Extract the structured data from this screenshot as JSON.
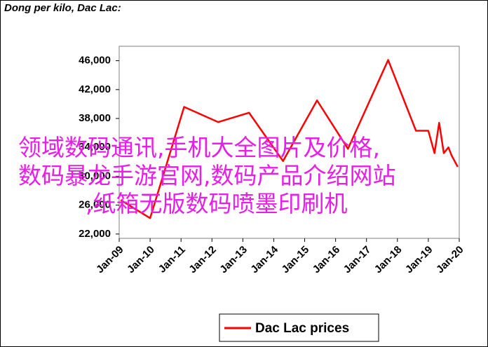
{
  "chart_data": {
    "type": "line",
    "title": "Dong per kilo, Dac Lac:",
    "x": [
      2009.05,
      2010.0,
      2011.1,
      2012.2,
      2013.2,
      2014.3,
      2015.4,
      2016.4,
      2017.7,
      2018.6,
      2019.0,
      2019.2,
      2019.35,
      2019.5,
      2019.65,
      2019.75,
      2019.95
    ],
    "series": [
      {
        "name": "Dac Lac prices",
        "color": "#ff0000",
        "values": [
          26700,
          24200,
          39600,
          37500,
          38800,
          32100,
          40500,
          33800,
          46100,
          36300,
          36300,
          33200,
          37400,
          33200,
          34000,
          32900,
          31300
        ]
      }
    ],
    "xlim": [
      2009,
      2020
    ],
    "xticks": [
      {
        "value": 2009,
        "label": "Jan-09"
      },
      {
        "value": 2010,
        "label": "Jan-10"
      },
      {
        "value": 2011,
        "label": "Jan-11"
      },
      {
        "value": 2012,
        "label": "Jan-12"
      },
      {
        "value": 2013,
        "label": "Jan-13"
      },
      {
        "value": 2014,
        "label": "Jan-14"
      },
      {
        "value": 2015,
        "label": "Jan-15"
      },
      {
        "value": 2016,
        "label": "Jan-16"
      },
      {
        "value": 2017,
        "label": "Jan-17"
      },
      {
        "value": 2018,
        "label": "Jan-18"
      },
      {
        "value": 2019,
        "label": "Jan-19"
      },
      {
        "value": 2020,
        "label": "Jan-20"
      }
    ],
    "ylim": [
      21400,
      48000
    ],
    "yticks": [
      {
        "value": 22000,
        "label": "22,000"
      },
      {
        "value": 26000,
        "label": "26,000"
      },
      {
        "value": 30000,
        "label": "30,000"
      },
      {
        "value": 34000,
        "label": "34,000"
      },
      {
        "value": 38000,
        "label": "38,000"
      },
      {
        "value": 42000,
        "label": "42,000"
      },
      {
        "value": 46000,
        "label": "46,000"
      }
    ],
    "grid": false,
    "legend": "bottom",
    "overlay_text": [
      "领域数码通讯,手机大全图片及价格,",
      "数码暴龙手游官网,数码产品介绍网站",
      ",纸箱无版数码喷墨印刷机"
    ]
  }
}
